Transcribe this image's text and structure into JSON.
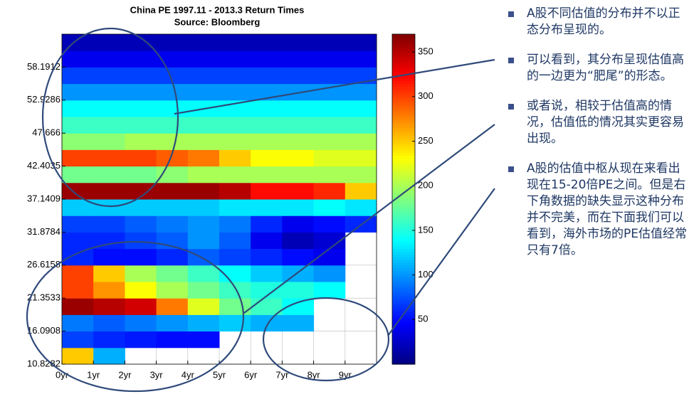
{
  "chart_data": {
    "type": "heatmap",
    "title": "China PE 1997.11 - 2013.3 Return Times",
    "subtitle": "Source: Bloomberg",
    "x_bins": [
      0,
      1,
      2,
      3,
      4,
      5,
      6,
      7,
      8,
      9,
      10
    ],
    "y_bins": [
      10.8282,
      13.4595,
      16.0908,
      18.7221,
      21.3533,
      23.9846,
      26.6158,
      29.2471,
      31.8784,
      34.5097,
      37.1409,
      39.7722,
      42.4035,
      45.0348,
      47.666,
      50.2973,
      52.9286,
      55.5599,
      58.1912,
      60.8225,
      63.4538
    ],
    "z": [
      [
        250,
        110,
        null,
        null,
        null,
        null,
        null,
        null,
        null,
        null
      ],
      [
        70,
        60,
        55,
        50,
        50,
        null,
        null,
        null,
        null,
        null
      ],
      [
        90,
        80,
        90,
        100,
        110,
        120,
        110,
        110,
        null,
        null
      ],
      [
        360,
        350,
        340,
        280,
        220,
        180,
        160,
        140,
        null,
        null
      ],
      [
        300,
        270,
        230,
        200,
        180,
        160,
        150,
        150,
        140,
        null
      ],
      [
        300,
        250,
        200,
        180,
        160,
        140,
        120,
        110,
        100,
        null
      ],
      [
        60,
        50,
        50,
        60,
        80,
        70,
        60,
        50,
        40,
        null
      ],
      [
        60,
        60,
        70,
        80,
        100,
        80,
        40,
        20,
        30,
        null
      ],
      [
        70,
        70,
        80,
        90,
        100,
        90,
        60,
        40,
        50,
        60
      ],
      [
        120,
        120,
        120,
        120,
        120,
        130,
        130,
        130,
        140,
        130
      ],
      [
        360,
        360,
        360,
        360,
        360,
        350,
        320,
        320,
        310,
        250
      ],
      [
        180,
        180,
        180,
        190,
        200,
        200,
        200,
        200,
        200,
        200
      ],
      [
        300,
        300,
        300,
        290,
        280,
        250,
        230,
        230,
        220,
        220
      ],
      [
        190,
        190,
        200,
        200,
        200,
        200,
        200,
        200,
        200,
        200
      ],
      [
        160,
        160,
        160,
        160,
        160,
        160,
        160,
        160,
        160,
        160
      ],
      [
        140,
        140,
        140,
        140,
        140,
        140,
        140,
        140,
        140,
        140
      ],
      [
        100,
        100,
        100,
        100,
        100,
        100,
        100,
        100,
        100,
        100
      ],
      [
        70,
        70,
        70,
        70,
        70,
        70,
        70,
        70,
        70,
        70
      ],
      [
        40,
        40,
        40,
        40,
        40,
        40,
        40,
        40,
        40,
        40
      ],
      [
        20,
        20,
        20,
        20,
        20,
        20,
        20,
        20,
        20,
        20
      ]
    ],
    "xlim": [
      0,
      10
    ],
    "xticks": [
      {
        "value": 0,
        "label": "0yr"
      },
      {
        "value": 1,
        "label": "1yr"
      },
      {
        "value": 2,
        "label": "2yr"
      },
      {
        "value": 3,
        "label": "3yr"
      },
      {
        "value": 4,
        "label": "4yr"
      },
      {
        "value": 5,
        "label": "5yr"
      },
      {
        "value": 6,
        "label": "6yr"
      },
      {
        "value": 7,
        "label": "7yr"
      },
      {
        "value": 8,
        "label": "8yr"
      },
      {
        "value": 9,
        "label": "9yr"
      }
    ],
    "ylim": [
      10.8282,
      63.4538
    ],
    "yticks": [
      10.8282,
      16.0908,
      21.3533,
      26.6158,
      31.8784,
      37.1409,
      42.4035,
      47.666,
      52.9286,
      58.1912
    ],
    "zlim": [
      0,
      370
    ],
    "zticks": [
      50,
      100,
      150,
      200,
      250,
      300,
      350
    ],
    "colormap": "jet",
    "grid": true
  },
  "notes": [
    "A股不同估值的分布并不以正态分布呈现的。",
    "可以看到，其分布呈现估值高的一边更为“肥尾”的形态。",
    "或者说，相较于估值高的情况，估值低的情况其实更容易出现。",
    "A股的估值中枢从现在来看出现在15-20倍PE之间。但是右下角数据的缺失显示这种分布并不完美，而在下面我们可以看到，海外市场的PE估值经常只有7倍。"
  ]
}
